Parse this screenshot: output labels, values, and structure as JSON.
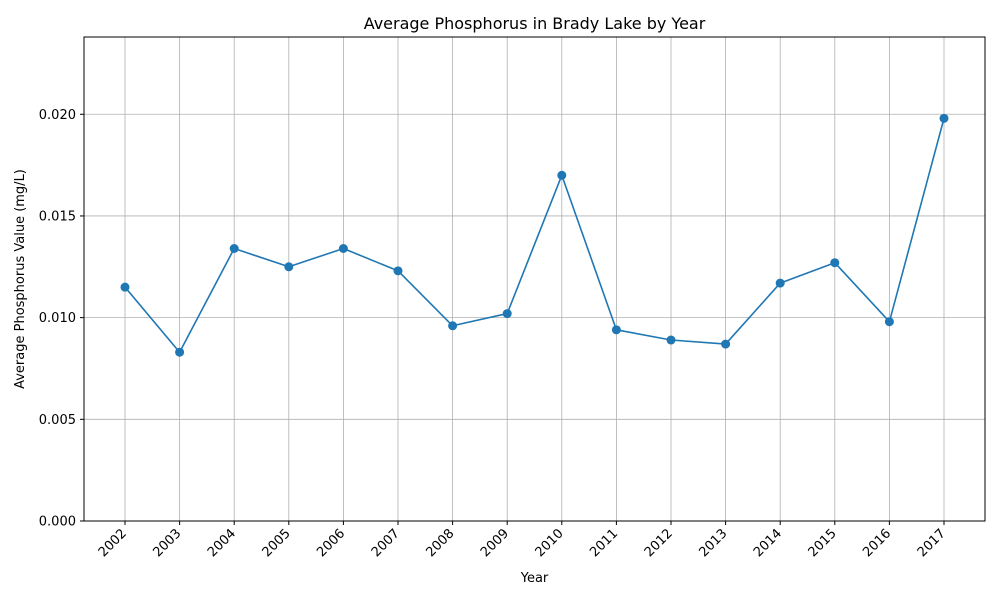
{
  "chart_data": {
    "type": "line",
    "title": "Average Phosphorus in Brady Lake by Year",
    "xlabel": "Year",
    "ylabel": "Average Phosphorus Value (mg/L)",
    "categories": [
      "2002",
      "2003",
      "2004",
      "2005",
      "2006",
      "2007",
      "2008",
      "2009",
      "2010",
      "2011",
      "2012",
      "2013",
      "2014",
      "2015",
      "2016",
      "2017"
    ],
    "series": [
      {
        "values": [
          0.0115,
          0.0083,
          0.0134,
          0.0125,
          0.0134,
          0.0123,
          0.0096,
          0.0102,
          0.017,
          0.0094,
          0.0089,
          0.0087,
          0.0117,
          0.0127,
          0.0098,
          0.0198
        ],
        "color": "#1f77b4",
        "marker": "circle"
      }
    ],
    "ylim": [
      0,
      0.0238
    ],
    "yticks": [
      "0.000",
      "0.005",
      "0.010",
      "0.015",
      "0.020"
    ],
    "xtick_rotation": "45-degrees",
    "grid": true,
    "legend": "none"
  }
}
